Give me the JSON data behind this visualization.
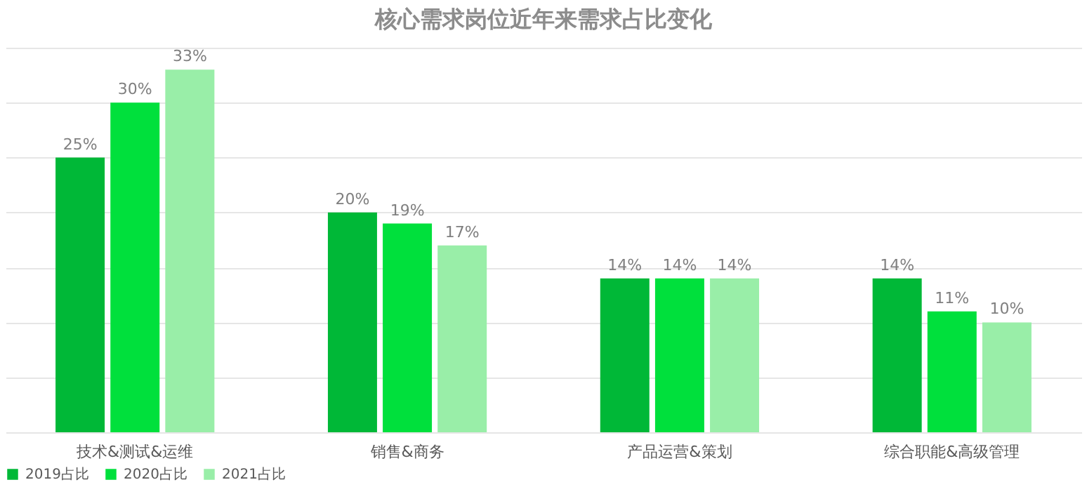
{
  "chart_data": {
    "type": "bar",
    "title": "核心需求岗位近年来需求占比变化",
    "categories": [
      "技术&测试&运维",
      "销售&商务",
      "产品运营&策划",
      "综合职能&高级管理"
    ],
    "series": [
      {
        "name": "2019占比",
        "color": "#00b837",
        "values": [
          25,
          20,
          14,
          14
        ],
        "value_labels": [
          "25%",
          "20%",
          "14%",
          "14%"
        ]
      },
      {
        "name": "2020占比",
        "color": "#00e03c",
        "values": [
          30,
          19,
          14,
          11
        ],
        "value_labels": [
          "30%",
          "19%",
          "14%",
          "11%"
        ]
      },
      {
        "name": "2021占比",
        "color": "#99eea8",
        "values": [
          33,
          17,
          14,
          10
        ],
        "value_labels": [
          "33%",
          "17%",
          "14%",
          "10%"
        ]
      }
    ],
    "ylim": [
      0,
      35
    ],
    "yticks": [
      {
        "value": 0,
        "label": null
      },
      {
        "value": 5,
        "label": null
      },
      {
        "value": 10,
        "label": null
      },
      {
        "value": 15,
        "label": null
      },
      {
        "value": 20,
        "label": null
      },
      {
        "value": 25,
        "label": null
      },
      {
        "value": 30,
        "label": null
      },
      {
        "value": 35,
        "label": null
      }
    ],
    "tick_labels": "x",
    "grid": "y",
    "legend": "bottom"
  }
}
